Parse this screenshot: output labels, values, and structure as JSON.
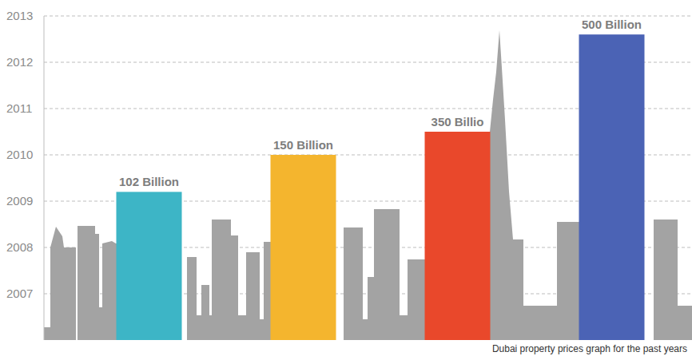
{
  "chart_data": {
    "type": "bar",
    "title": "Dubai property prices graph for the past years",
    "categories": [
      null,
      null,
      null,
      null
    ],
    "values": [
      2009.2,
      2010.0,
      2010.5,
      2012.6
    ],
    "annotations": [
      "102 Billion",
      "150 Billion",
      "350 Billio",
      "500 Billion"
    ],
    "colors": [
      "#3db5c6",
      "#f4b52e",
      "#e9482b",
      "#4b63b5"
    ],
    "ylim": [
      2006,
      2013
    ],
    "yticks": [
      2007,
      2008,
      2009,
      2010,
      2011,
      2012,
      2013
    ],
    "grid": true,
    "tick_labels": "y"
  }
}
